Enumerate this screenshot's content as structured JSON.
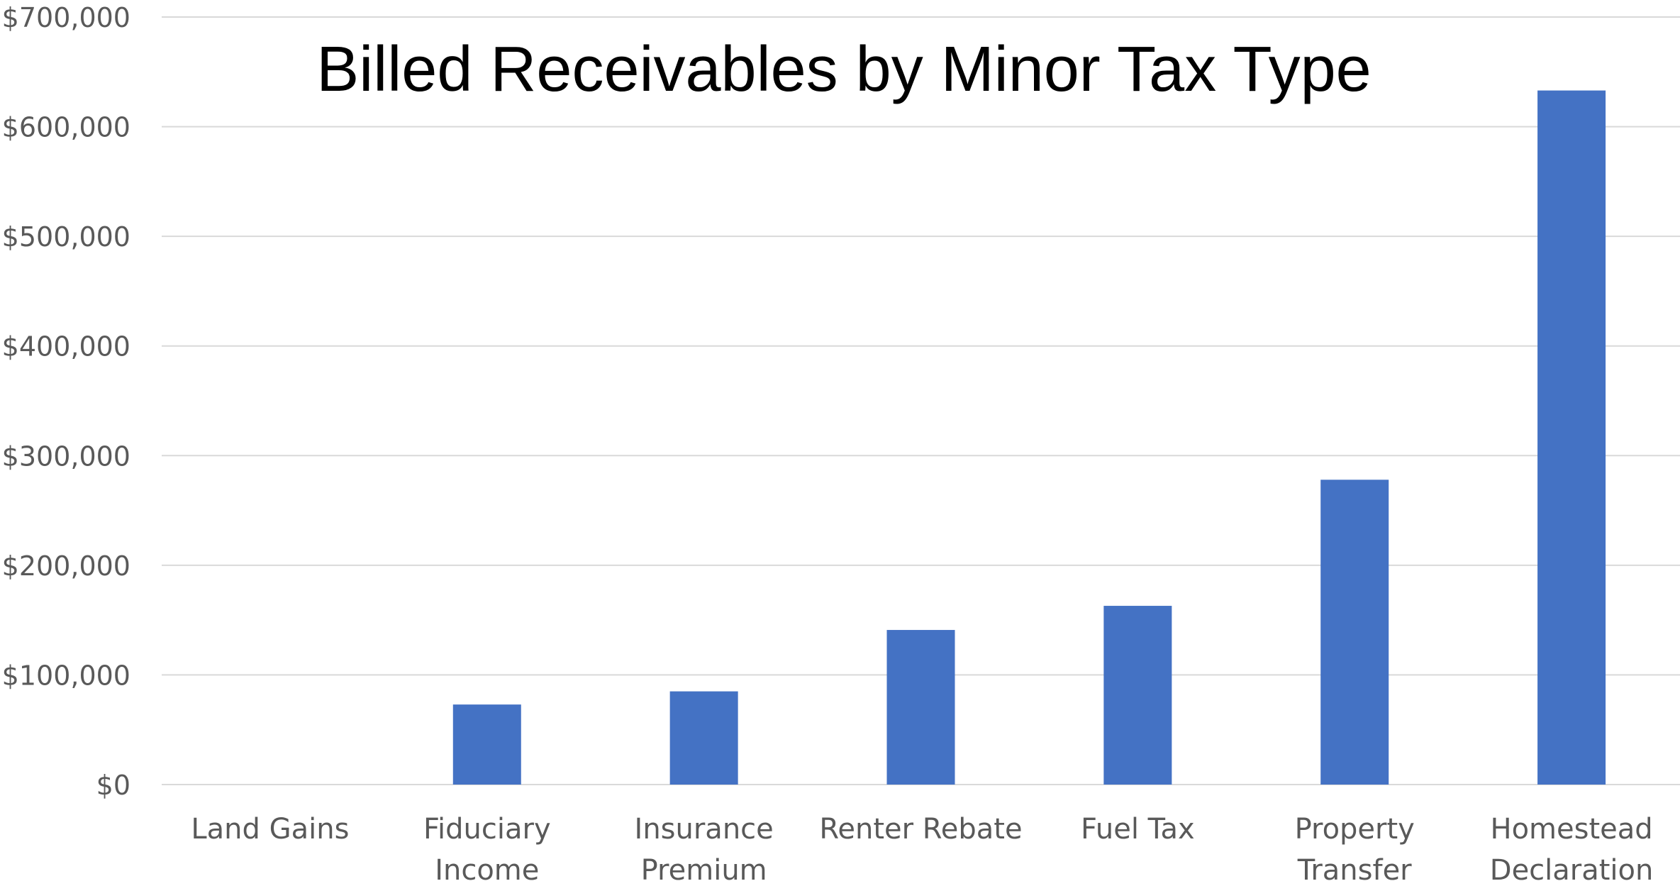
{
  "chart_data": {
    "type": "bar",
    "title": "Billed Receivables by Minor Tax Type",
    "xlabel": "",
    "ylabel": "",
    "categories": [
      [
        "Land Gains"
      ],
      [
        "Fiduciary",
        "Income"
      ],
      [
        "Insurance",
        "Premium"
      ],
      [
        "Renter Rebate"
      ],
      [
        "Fuel Tax"
      ],
      [
        "Property",
        "Transfer"
      ],
      [
        "Homestead",
        "Declaration"
      ]
    ],
    "series": [
      {
        "values": [
          0,
          73000,
          85000,
          141000,
          163000,
          278000,
          633000
        ],
        "color": "#4472c4"
      }
    ],
    "ylim": [
      0,
      700000
    ],
    "yticks": [
      0,
      100000,
      200000,
      300000,
      400000,
      500000,
      600000,
      700000
    ],
    "ytick_labels": [
      "$0",
      "$100,000",
      "$200,000",
      "$300,000",
      "$400,000",
      "$500,000",
      "$600,000",
      "$700,000"
    ],
    "grid": true,
    "legend": "none",
    "colors": {
      "bar": "#4472c4",
      "grid": "#d9d9d9",
      "tick_text": "#595959",
      "title_text": "#000000"
    }
  }
}
